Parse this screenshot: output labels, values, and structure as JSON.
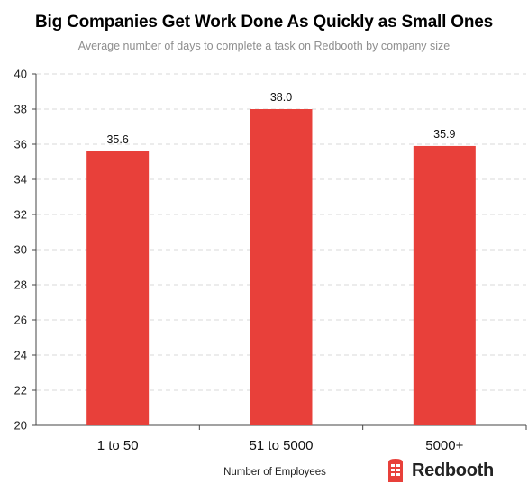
{
  "title": "Big Companies Get Work Done As Quickly as Small Ones",
  "subtitle": "Average number of days to complete a task on Redbooth by company size",
  "brand": {
    "name": "Redbooth",
    "color": "#e8403a",
    "icon": "phone-booth-icon"
  },
  "chart_data": {
    "type": "bar",
    "categories": [
      "1 to 50",
      "51 to 5000",
      "5000+"
    ],
    "values": [
      35.6,
      38.0,
      35.9
    ],
    "value_labels": [
      "35.6",
      "38.0",
      "35.9"
    ],
    "xlabel": "Number of Employees",
    "ylabel": "",
    "ylim": [
      20,
      40
    ],
    "yticks": [
      20,
      22,
      24,
      26,
      28,
      30,
      32,
      34,
      36,
      38,
      40
    ],
    "grid": true,
    "bar_color": "#e8403a"
  }
}
